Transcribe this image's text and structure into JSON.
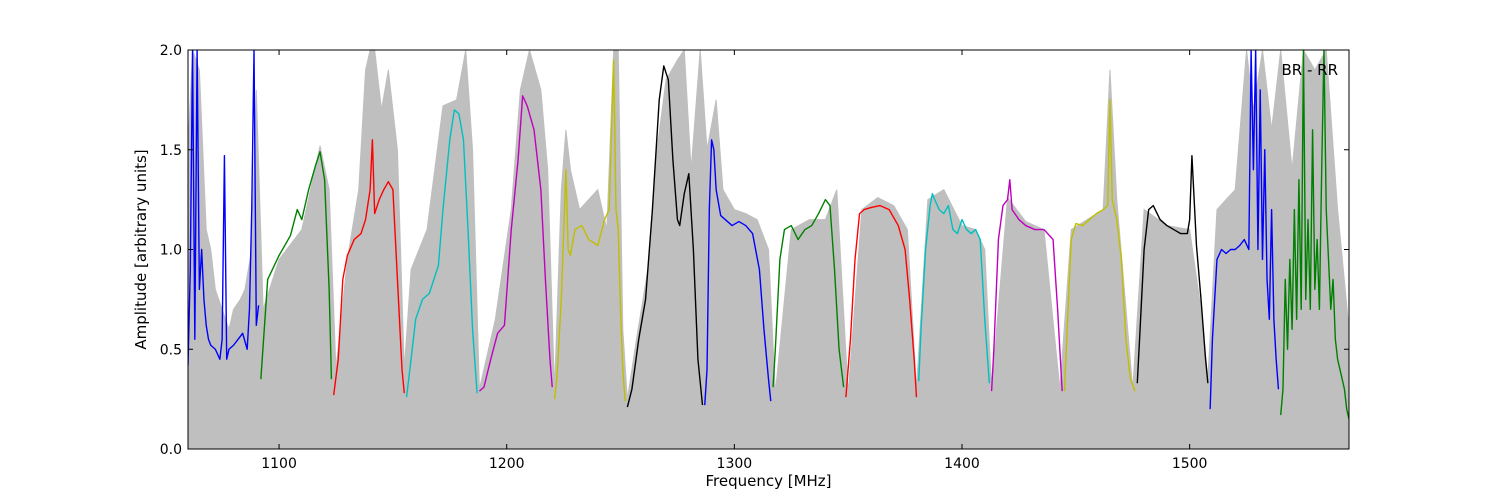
{
  "chart_data": {
    "type": "line",
    "title": "",
    "annotation": "BR - RR",
    "xlabel": "Frequency [MHz]",
    "ylabel": "Amplitude [arbitrary units]",
    "xlim": [
      1060,
      1570
    ],
    "ylim": [
      0.0,
      2.0
    ],
    "xticks": [
      1100,
      1200,
      1300,
      1400,
      1500
    ],
    "xtick_labels": [
      "1100",
      "1200",
      "1300",
      "1400",
      "1500"
    ],
    "yticks": [
      0.0,
      0.5,
      1.0,
      1.5,
      2.0
    ],
    "ytick_labels": [
      "0.0",
      "0.5",
      "1.0",
      "1.5",
      "2.0"
    ],
    "grid": false,
    "background_color": "#bfbfbf",
    "background": {
      "x": [
        1060,
        1062,
        1065,
        1068,
        1070,
        1072,
        1075,
        1078,
        1080,
        1083,
        1085,
        1088,
        1090,
        1093,
        1100,
        1110,
        1118,
        1122,
        1125,
        1130,
        1135,
        1138,
        1140,
        1142,
        1145,
        1148,
        1152,
        1155,
        1158,
        1165,
        1172,
        1178,
        1182,
        1185,
        1188,
        1195,
        1202,
        1206,
        1210,
        1215,
        1218,
        1221,
        1224,
        1226,
        1228,
        1232,
        1236,
        1240,
        1244,
        1247,
        1249,
        1251,
        1253,
        1257,
        1262,
        1266,
        1270,
        1275,
        1278,
        1281,
        1285,
        1288,
        1292,
        1295,
        1300,
        1305,
        1310,
        1315,
        1318,
        1325,
        1333,
        1340,
        1345,
        1350,
        1356,
        1363,
        1370,
        1376,
        1380,
        1385,
        1392,
        1400,
        1406,
        1410,
        1413,
        1420,
        1428,
        1436,
        1443,
        1448,
        1455,
        1462,
        1465,
        1468,
        1475,
        1480,
        1490,
        1500,
        1505,
        1508,
        1512,
        1516,
        1520,
        1525,
        1528,
        1532,
        1536,
        1540,
        1545,
        1550,
        1555,
        1560,
        1565,
        1570
      ],
      "y": [
        1.5,
        2.0,
        1.9,
        1.1,
        1.0,
        0.8,
        0.7,
        0.6,
        0.7,
        0.75,
        0.8,
        1.0,
        1.8,
        0.7,
        0.95,
        1.1,
        1.52,
        1.3,
        0.4,
        0.95,
        1.3,
        1.9,
        2.0,
        2.0,
        1.7,
        1.9,
        1.5,
        0.4,
        0.9,
        1.1,
        1.72,
        1.75,
        2.0,
        1.5,
        0.3,
        0.65,
        1.2,
        1.8,
        2.0,
        1.8,
        1.4,
        0.3,
        1.3,
        1.6,
        1.4,
        1.2,
        1.25,
        1.3,
        1.1,
        2.0,
        2.0,
        0.6,
        0.25,
        0.55,
        0.9,
        1.5,
        1.85,
        1.95,
        2.0,
        1.4,
        2.0,
        1.5,
        1.75,
        1.3,
        1.2,
        1.18,
        1.15,
        1.0,
        0.28,
        1.1,
        1.15,
        1.15,
        1.3,
        0.28,
        1.2,
        1.26,
        1.22,
        1.1,
        0.3,
        1.25,
        1.3,
        1.12,
        1.1,
        1.0,
        0.3,
        1.26,
        1.14,
        1.1,
        0.3,
        1.1,
        1.15,
        1.2,
        1.9,
        1.25,
        0.3,
        1.2,
        1.12,
        1.1,
        0.7,
        0.35,
        1.2,
        1.25,
        1.3,
        2.0,
        1.7,
        2.0,
        1.6,
        2.0,
        1.4,
        2.0,
        1.9,
        2.0,
        1.2,
        0.6
      ]
    },
    "series": [
      {
        "color": "#0000ff",
        "x": [
          1060,
          1061,
          1062,
          1063,
          1064,
          1065,
          1066,
          1067,
          1068,
          1069,
          1070,
          1072,
          1074,
          1075,
          1076,
          1077,
          1078,
          1080,
          1082,
          1084,
          1086,
          1087,
          1088,
          1089,
          1090,
          1091
        ],
        "y": [
          0.42,
          0.9,
          2.0,
          0.55,
          2.0,
          0.8,
          1.0,
          0.75,
          0.62,
          0.55,
          0.52,
          0.5,
          0.45,
          0.55,
          1.47,
          0.45,
          0.5,
          0.52,
          0.55,
          0.58,
          0.5,
          0.7,
          1.2,
          2.0,
          0.62,
          0.72
        ]
      },
      {
        "color": "#008000",
        "x": [
          1092,
          1095,
          1100,
          1105,
          1108,
          1110,
          1113,
          1116,
          1118,
          1120,
          1122,
          1123
        ],
        "y": [
          0.35,
          0.85,
          0.97,
          1.07,
          1.2,
          1.15,
          1.3,
          1.42,
          1.49,
          1.35,
          0.8,
          0.35
        ]
      },
      {
        "color": "#ff0000",
        "x": [
          1124,
          1126,
          1128,
          1130,
          1133,
          1136,
          1138,
          1140,
          1141,
          1142,
          1144,
          1146,
          1148,
          1150,
          1152,
          1154,
          1155
        ],
        "y": [
          0.27,
          0.45,
          0.85,
          0.97,
          1.05,
          1.08,
          1.15,
          1.3,
          1.55,
          1.18,
          1.25,
          1.3,
          1.34,
          1.3,
          0.85,
          0.4,
          0.28
        ]
      },
      {
        "color": "#00bfbf",
        "x": [
          1156,
          1158,
          1160,
          1163,
          1166,
          1170,
          1172,
          1175,
          1177,
          1179,
          1181,
          1183,
          1185,
          1187
        ],
        "y": [
          0.26,
          0.45,
          0.65,
          0.75,
          0.78,
          0.92,
          1.2,
          1.55,
          1.7,
          1.68,
          1.55,
          1.1,
          0.6,
          0.28
        ]
      },
      {
        "color": "#bf00bf",
        "x": [
          1188,
          1190,
          1193,
          1196,
          1199,
          1202,
          1205,
          1207,
          1209,
          1212,
          1215,
          1217,
          1219,
          1220
        ],
        "y": [
          0.29,
          0.31,
          0.45,
          0.58,
          0.62,
          1.1,
          1.45,
          1.77,
          1.72,
          1.6,
          1.3,
          0.85,
          0.45,
          0.31
        ]
      },
      {
        "color": "#bfbf00",
        "x": [
          1221,
          1222,
          1224,
          1226,
          1227,
          1228,
          1230,
          1233,
          1236,
          1240,
          1243,
          1245,
          1247,
          1248,
          1249,
          1250,
          1251,
          1252
        ],
        "y": [
          0.25,
          0.35,
          0.75,
          1.4,
          1.0,
          0.97,
          1.1,
          1.12,
          1.05,
          1.02,
          1.15,
          1.2,
          1.95,
          1.2,
          1.1,
          0.7,
          0.4,
          0.24
        ]
      },
      {
        "color": "#000000",
        "x": [
          1253,
          1255,
          1258,
          1261,
          1264,
          1267,
          1269,
          1271,
          1273,
          1275,
          1276,
          1278,
          1280,
          1282,
          1284,
          1286
        ],
        "y": [
          0.21,
          0.3,
          0.55,
          0.75,
          1.2,
          1.75,
          1.92,
          1.85,
          1.45,
          1.15,
          1.12,
          1.28,
          1.38,
          1.0,
          0.45,
          0.22
        ]
      },
      {
        "color": "#0000ff",
        "x": [
          1287,
          1288,
          1289,
          1290,
          1291,
          1292,
          1294,
          1296,
          1299,
          1302,
          1305,
          1308,
          1311,
          1313,
          1315,
          1316
        ],
        "y": [
          0.22,
          0.4,
          1.2,
          1.55,
          1.5,
          1.3,
          1.17,
          1.15,
          1.12,
          1.14,
          1.12,
          1.08,
          0.9,
          0.6,
          0.35,
          0.24
        ]
      },
      {
        "color": "#008000",
        "x": [
          1317,
          1318,
          1320,
          1322,
          1325,
          1328,
          1331,
          1334,
          1337,
          1340,
          1342,
          1344,
          1346,
          1348
        ],
        "y": [
          0.31,
          0.5,
          0.95,
          1.1,
          1.12,
          1.05,
          1.1,
          1.12,
          1.18,
          1.25,
          1.22,
          0.9,
          0.5,
          0.31
        ]
      },
      {
        "color": "#ff0000",
        "x": [
          1349,
          1351,
          1353,
          1355,
          1357,
          1360,
          1364,
          1368,
          1372,
          1375,
          1377,
          1379,
          1380
        ],
        "y": [
          0.26,
          0.55,
          0.95,
          1.18,
          1.2,
          1.21,
          1.22,
          1.2,
          1.12,
          1.0,
          0.75,
          0.45,
          0.26
        ]
      },
      {
        "color": "#00bfbf",
        "x": [
          1381,
          1382,
          1384,
          1386,
          1387,
          1388,
          1390,
          1392,
          1394,
          1396,
          1398,
          1400,
          1402,
          1404,
          1406,
          1408,
          1410,
          1412
        ],
        "y": [
          0.34,
          0.6,
          1.0,
          1.22,
          1.28,
          1.25,
          1.2,
          1.18,
          1.22,
          1.1,
          1.08,
          1.15,
          1.1,
          1.08,
          1.1,
          1.05,
          0.65,
          0.33
        ]
      },
      {
        "color": "#bf00bf",
        "x": [
          1413,
          1414,
          1416,
          1418,
          1420,
          1421,
          1422,
          1425,
          1428,
          1432,
          1436,
          1440,
          1442,
          1444
        ],
        "y": [
          0.29,
          0.5,
          1.05,
          1.22,
          1.25,
          1.35,
          1.2,
          1.15,
          1.12,
          1.1,
          1.1,
          1.05,
          0.7,
          0.29
        ]
      },
      {
        "color": "#bfbf00",
        "x": [
          1445,
          1446,
          1448,
          1450,
          1453,
          1456,
          1459,
          1462,
          1464,
          1465,
          1466,
          1468,
          1470,
          1472,
          1474,
          1476
        ],
        "y": [
          0.29,
          0.55,
          1.05,
          1.13,
          1.12,
          1.15,
          1.18,
          1.2,
          1.22,
          1.75,
          1.25,
          1.15,
          0.95,
          0.55,
          0.35,
          0.29
        ]
      },
      {
        "color": "#000000",
        "x": [
          1477,
          1478,
          1480,
          1482,
          1484,
          1487,
          1490,
          1493,
          1496,
          1499,
          1500,
          1501,
          1503,
          1505,
          1507,
          1508
        ],
        "y": [
          0.33,
          0.55,
          1.0,
          1.2,
          1.22,
          1.15,
          1.12,
          1.1,
          1.08,
          1.08,
          1.15,
          1.47,
          1.02,
          0.75,
          0.45,
          0.33
        ]
      },
      {
        "color": "#0000ff",
        "x": [
          1509,
          1510,
          1512,
          1514,
          1516,
          1518,
          1520,
          1522,
          1524,
          1526,
          1527,
          1528,
          1529,
          1530,
          1531,
          1532,
          1533,
          1534,
          1535,
          1536,
          1537,
          1538,
          1539
        ],
        "y": [
          0.2,
          0.55,
          0.95,
          1.0,
          0.98,
          1.0,
          1.0,
          1.02,
          1.05,
          1.0,
          2.0,
          1.4,
          2.0,
          1.0,
          1.8,
          0.95,
          1.5,
          0.85,
          0.65,
          1.2,
          0.65,
          0.45,
          0.3
        ]
      },
      {
        "color": "#008000",
        "x": [
          1540,
          1541,
          1542,
          1543,
          1544,
          1545,
          1546,
          1547,
          1548,
          1549,
          1550,
          1551,
          1552,
          1553,
          1554,
          1555,
          1556,
          1557,
          1558,
          1559,
          1560,
          1561,
          1562,
          1563,
          1564,
          1565,
          1566,
          1567,
          1568,
          1569,
          1570
        ],
        "y": [
          0.17,
          0.3,
          0.85,
          0.5,
          0.95,
          0.6,
          1.2,
          0.65,
          1.35,
          0.7,
          2.0,
          0.75,
          1.15,
          0.7,
          1.6,
          0.8,
          1.05,
          0.7,
          1.4,
          2.0,
          1.2,
          0.95,
          0.7,
          0.85,
          0.55,
          0.45,
          0.4,
          0.35,
          0.3,
          0.2,
          0.15
        ]
      }
    ]
  }
}
